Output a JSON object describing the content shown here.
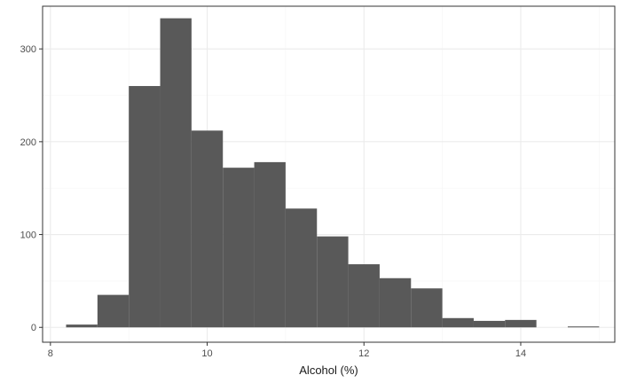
{
  "chart_data": {
    "type": "bar",
    "subtype": "histogram",
    "title": "",
    "xlabel": "Alcohol (%)",
    "ylabel": "",
    "xlim": [
      7.9,
      15.2
    ],
    "ylim": [
      -16,
      346
    ],
    "x_ticks": [
      8,
      10,
      12,
      14
    ],
    "y_ticks": [
      0,
      100,
      200,
      300
    ],
    "grid": true,
    "bin_width": 0.4,
    "bins": [
      {
        "start": 8.2,
        "end": 8.6,
        "count": 3
      },
      {
        "start": 8.6,
        "end": 9.0,
        "count": 35
      },
      {
        "start": 9.0,
        "end": 9.4,
        "count": 260
      },
      {
        "start": 9.4,
        "end": 9.8,
        "count": 333
      },
      {
        "start": 9.8,
        "end": 10.2,
        "count": 212
      },
      {
        "start": 10.2,
        "end": 10.6,
        "count": 172
      },
      {
        "start": 10.6,
        "end": 11.0,
        "count": 178
      },
      {
        "start": 11.0,
        "end": 11.4,
        "count": 128
      },
      {
        "start": 11.4,
        "end": 11.8,
        "count": 98
      },
      {
        "start": 11.8,
        "end": 12.2,
        "count": 68
      },
      {
        "start": 12.2,
        "end": 12.6,
        "count": 53
      },
      {
        "start": 12.6,
        "end": 13.0,
        "count": 42
      },
      {
        "start": 13.0,
        "end": 13.4,
        "count": 10
      },
      {
        "start": 13.4,
        "end": 13.8,
        "count": 7
      },
      {
        "start": 13.8,
        "end": 14.2,
        "count": 8
      },
      {
        "start": 14.2,
        "end": 14.6,
        "count": 0
      },
      {
        "start": 14.6,
        "end": 15.0,
        "count": 1
      }
    ]
  },
  "colors": {
    "bar_fill": "#595959",
    "panel_border": "#333333",
    "grid_major": "#ebebeb",
    "grid_minor": "#f5f5f5",
    "tick_text": "#4d4d4d",
    "axis_title": "#1a1a1a"
  }
}
